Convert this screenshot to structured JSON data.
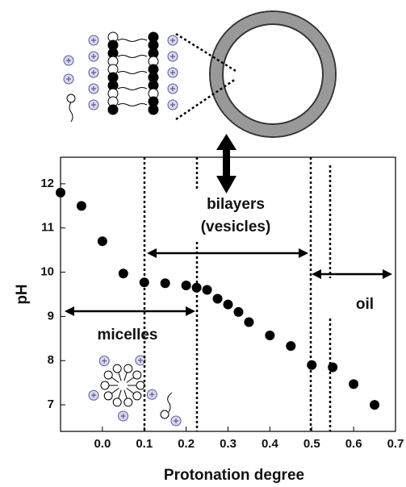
{
  "chart_data": {
    "type": "scatter",
    "x_label": "Protonation degree",
    "y_label": "pH",
    "annotations": [
      "bilayers",
      "(vesicles)",
      "micelles",
      "oil"
    ],
    "x": [
      -0.1,
      -0.05,
      0.0,
      0.05,
      0.1,
      0.15,
      0.2,
      0.225,
      0.25,
      0.275,
      0.3,
      0.325,
      0.35,
      0.4,
      0.45,
      0.5,
      0.55,
      0.6,
      0.65
    ],
    "values": [
      11.8,
      11.5,
      10.7,
      9.97,
      9.77,
      9.75,
      9.7,
      9.65,
      9.6,
      9.4,
      9.27,
      9.1,
      8.87,
      8.57,
      8.33,
      7.9,
      7.85,
      7.47,
      7.0
    ],
    "color": "#000000",
    "xlim": [
      -0.1,
      0.7
    ],
    "ylim": [
      6.4,
      12.6
    ],
    "xticks": [
      {
        "value": 0,
        "label": "0.0"
      },
      0.1,
      0.2,
      0.3,
      0.4,
      0.5,
      0.6,
      0.7
    ],
    "yticks": [
      7,
      8,
      9,
      10,
      11,
      12
    ]
  }
}
